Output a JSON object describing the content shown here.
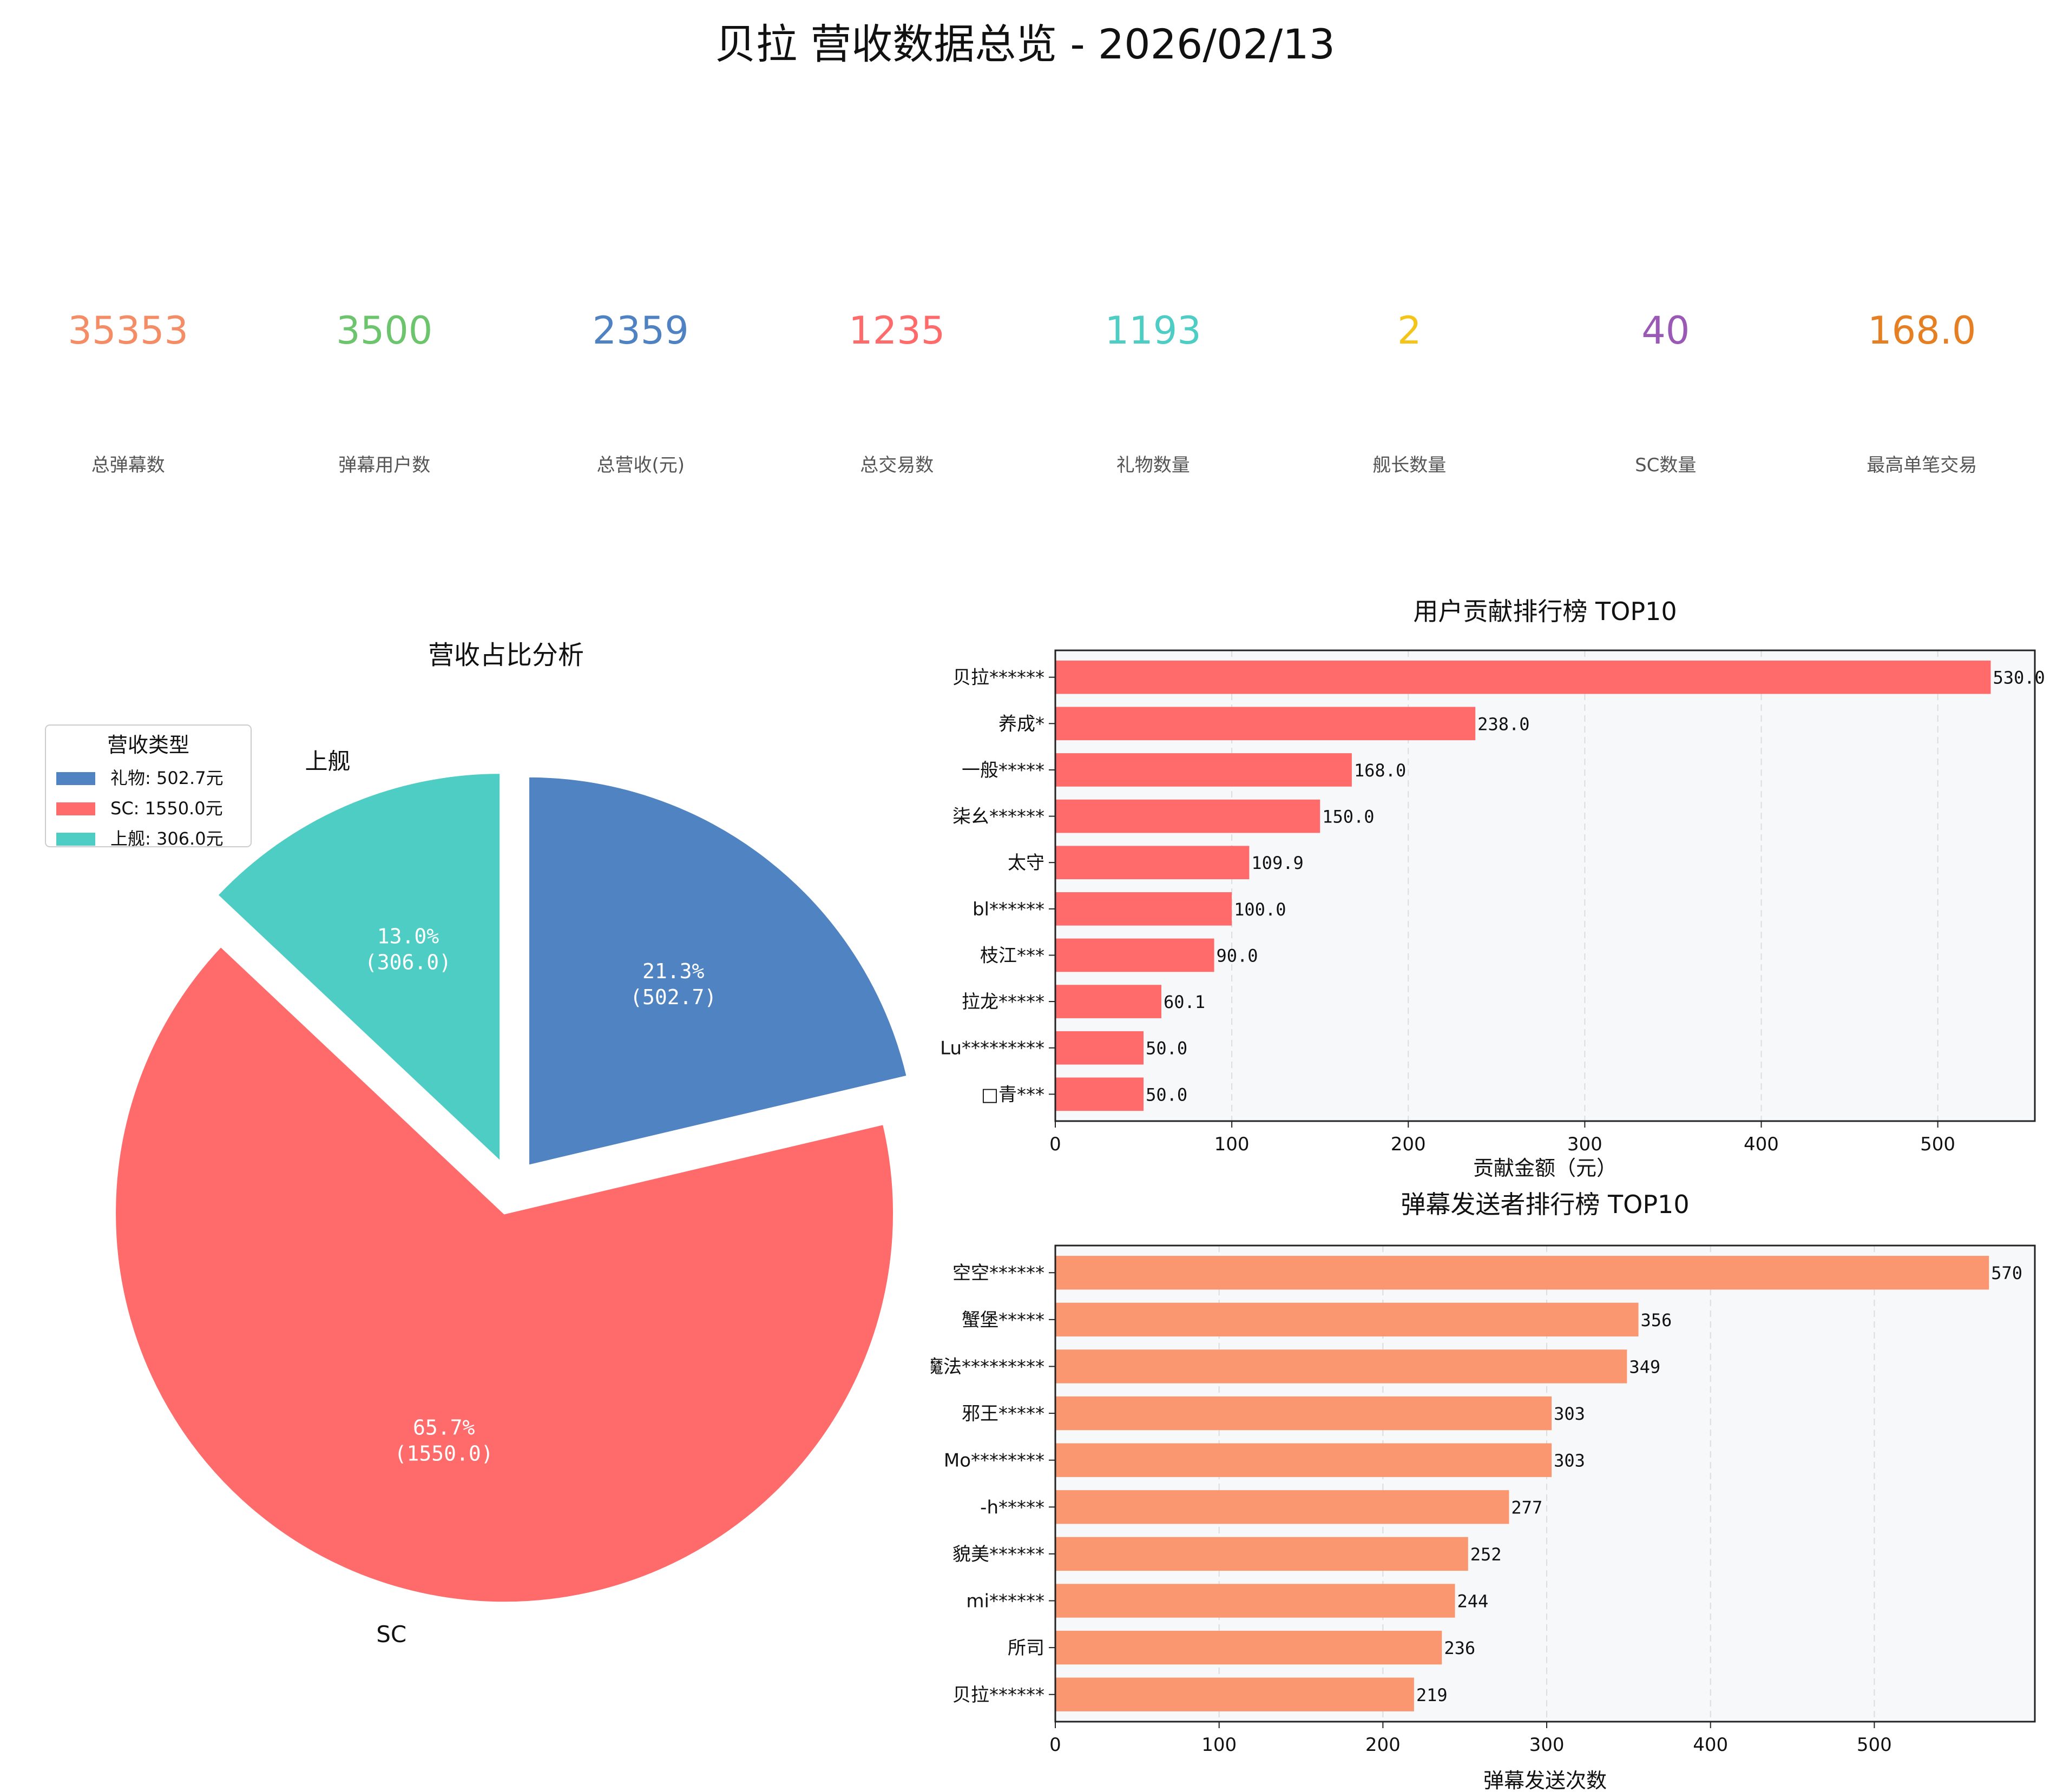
{
  "title": "贝拉 营收数据总览 - 2026/02/13",
  "kpis": [
    {
      "value": "35353",
      "label": "总弹幕数",
      "color": "#f48d66"
    },
    {
      "value": "3500",
      "label": "弹幕用户数",
      "color": "#6cc46c"
    },
    {
      "value": "2359",
      "label": "总营收(元)",
      "color": "#4f82c2"
    },
    {
      "value": "1235",
      "label": "总交易数",
      "color": "#ff6b6b"
    },
    {
      "value": "1193",
      "label": "礼物数量",
      "color": "#4ecdc4"
    },
    {
      "value": "2",
      "label": "舰长数量",
      "color": "#f4c518"
    },
    {
      "value": "40",
      "label": "SC数量",
      "color": "#9b59b6"
    },
    {
      "value": "168.0",
      "label": "最高单笔交易",
      "color": "#e67e22"
    }
  ],
  "chart_data": [
    {
      "type": "pie",
      "title": "营收占比分析",
      "slices": [
        {
          "label": "礼物",
          "value": 502.7,
          "percent": "21.3%",
          "value_label": "(502.7)",
          "color": "#4f83c2",
          "show_outer_label": false
        },
        {
          "label": "SC",
          "value": 1550.0,
          "percent": "65.7%",
          "value_label": "(1550.0)",
          "color": "#ff6b6b",
          "show_outer_label": true
        },
        {
          "label": "上舰",
          "value": 306.0,
          "percent": "13.0%",
          "value_label": "(306.0)",
          "color": "#4ecdc4",
          "show_outer_label": true
        }
      ],
      "legend": {
        "title": "营收类型",
        "placement": "top-left",
        "entries": [
          "礼物: 502.7元",
          "SC: 1550.0元",
          "上舰: 306.0元"
        ]
      },
      "start_angle_deg": 90,
      "direction": "clockwise",
      "explode": true
    },
    {
      "type": "bar",
      "orientation": "horizontal",
      "title": "用户贡献排行榜 TOP10",
      "xlabel": "贡献金额（元）",
      "ylabel": "",
      "xlim": [
        0,
        555
      ],
      "xticks": [
        0,
        100,
        200,
        300,
        400,
        500
      ],
      "grid": true,
      "color": "#ff6b6b",
      "value_format": "fixed1",
      "categories": [
        "贝拉******",
        "养成*",
        "一般*****",
        "柒幺******",
        "太守",
        "bl******",
        "枝江***",
        "拉龙*****",
        "Lu*********",
        "□青***"
      ],
      "values": [
        530.0,
        238.0,
        168.0,
        150.0,
        109.9,
        100.0,
        90.0,
        60.1,
        50.0,
        50.0
      ]
    },
    {
      "type": "bar",
      "orientation": "horizontal",
      "title": "弹幕发送者排行榜 TOP10",
      "xlabel": "弹幕发送次数",
      "ylabel": "",
      "xlim": [
        0,
        598
      ],
      "xticks": [
        0,
        100,
        200,
        300,
        400,
        500
      ],
      "grid": true,
      "color": "#fa9670",
      "value_format": "int",
      "categories": [
        "空空******",
        "蟹堡*****",
        "魔法*********",
        "邪王*****",
        "Mo********",
        "-h*****",
        "貌美******",
        "mi******",
        "所司",
        "贝拉******"
      ],
      "values": [
        570,
        356,
        349,
        303,
        303,
        277,
        252,
        244,
        236,
        219
      ]
    }
  ]
}
